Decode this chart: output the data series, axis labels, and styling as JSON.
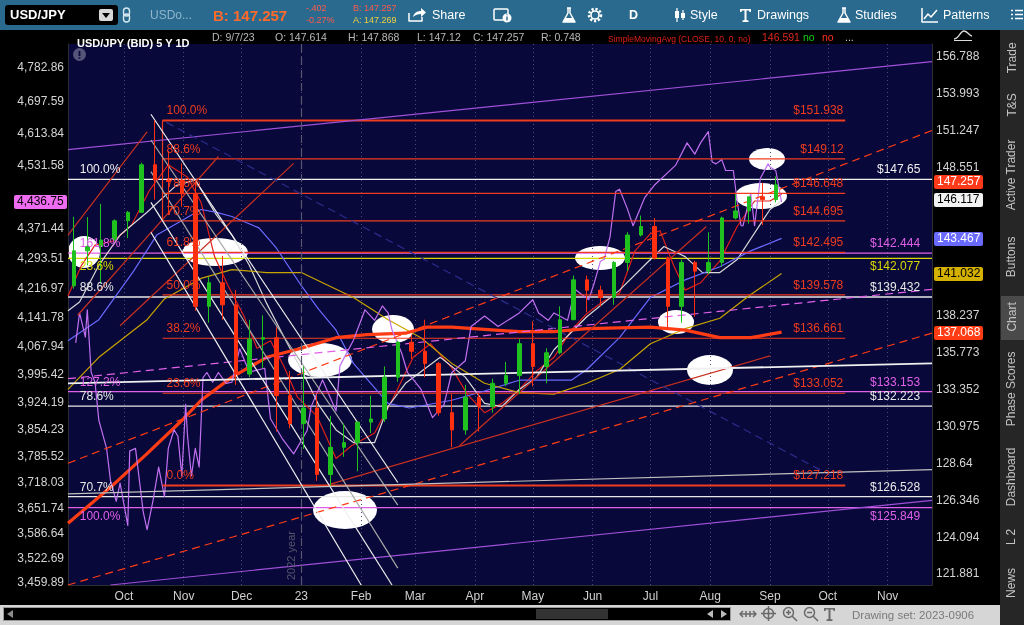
{
  "chart_data": {
    "type": "candlestick",
    "title": "USD/JPY (BID) 5 Y 1D",
    "legend": "top",
    "grid": "x",
    "marker": "none",
    "log": "y",
    "xlim": [
      "2022-09-02",
      "2023-11-24"
    ],
    "xticks": [
      {
        "value": "2022-10-01",
        "label": "Oct"
      },
      {
        "value": "2022-11-01",
        "label": "Nov"
      },
      {
        "value": "2022-12-01",
        "label": "Dec"
      },
      {
        "value": "2023-01-01",
        "label": "23"
      },
      {
        "value": "2023-02-01",
        "label": "Feb"
      },
      {
        "value": "2023-03-01",
        "label": "Mar"
      },
      {
        "value": "2023-04-01",
        "label": "Apr"
      },
      {
        "value": "2023-05-01",
        "label": "May"
      },
      {
        "value": "2023-06-01",
        "label": "Jun"
      },
      {
        "value": "2023-07-01",
        "label": "Jul"
      },
      {
        "value": "2023-08-01",
        "label": "Aug"
      },
      {
        "value": "2023-09-01",
        "label": "Sep"
      },
      {
        "value": "2023-10-01",
        "label": "Oct"
      },
      {
        "value": "2023-11-01",
        "label": "Nov"
      }
    ],
    "ylim": [
      121.2,
      157.7
    ],
    "yticks": [
      121.881,
      124.094,
      126.346,
      128.64,
      130.975,
      133.352,
      135.773,
      138.237,
      148.551,
      151.247,
      153.993,
      156.788
    ],
    "y2lim": [
      3453,
      4843
    ],
    "y2ticks": [
      {
        "value": 3459.89,
        "label": "3,459.89"
      },
      {
        "value": 3522.69,
        "label": "3,522.69"
      },
      {
        "value": 3586.64,
        "label": "3,586.64"
      },
      {
        "value": 3651.74,
        "label": "3,651.74"
      },
      {
        "value": 3718.03,
        "label": "3,718.03"
      },
      {
        "value": 3785.52,
        "label": "3,785.52"
      },
      {
        "value": 3854.23,
        "label": "3,854.23"
      },
      {
        "value": 3924.19,
        "label": "3,924.19"
      },
      {
        "value": 3995.42,
        "label": "3,995.42"
      },
      {
        "value": 4067.94,
        "label": "4,067.94"
      },
      {
        "value": 4141.78,
        "label": "4,141.78"
      },
      {
        "value": 4216.97,
        "label": "4,216.97"
      },
      {
        "value": 4293.51,
        "label": "4,293.51"
      },
      {
        "value": 4371.44,
        "label": "4,371.44"
      },
      {
        "value": 4531.58,
        "label": "4,531.58"
      },
      {
        "value": 4613.84,
        "label": "4,613.84"
      },
      {
        "value": 4697.59,
        "label": "4,697.59"
      },
      {
        "value": 4782.86,
        "label": "4,782.86"
      }
    ],
    "x": [
      "2022-09-05",
      "2022-09-12",
      "2022-09-19",
      "2022-09-26",
      "2022-10-03",
      "2022-10-10",
      "2022-10-17",
      "2022-10-24",
      "2022-10-31",
      "2022-11-07",
      "2022-11-14",
      "2022-11-21",
      "2022-11-28",
      "2022-12-05",
      "2022-12-12",
      "2022-12-19",
      "2022-12-26",
      "2023-01-02",
      "2023-01-09",
      "2023-01-16",
      "2023-01-23",
      "2023-01-30",
      "2023-02-06",
      "2023-02-13",
      "2023-02-20",
      "2023-02-27",
      "2023-03-06",
      "2023-03-13",
      "2023-03-20",
      "2023-03-27",
      "2023-04-03",
      "2023-04-10",
      "2023-04-17",
      "2023-04-24",
      "2023-05-01",
      "2023-05-08",
      "2023-05-15",
      "2023-05-22",
      "2023-05-29",
      "2023-06-05",
      "2023-06-12",
      "2023-06-19",
      "2023-06-26",
      "2023-07-03",
      "2023-07-10",
      "2023-07-17",
      "2023-07-24",
      "2023-07-31",
      "2023-08-07",
      "2023-08-14",
      "2023-08-21",
      "2023-08-28",
      "2023-09-04"
    ],
    "ohlc": [
      [
        140.2,
        144.99,
        140.0,
        142.6
      ],
      [
        142.6,
        144.96,
        141.6,
        142.9
      ],
      [
        142.9,
        145.9,
        140.35,
        143.35
      ],
      [
        143.4,
        144.8,
        143.3,
        144.7
      ],
      [
        144.7,
        145.4,
        143.5,
        145.3
      ],
      [
        145.3,
        148.85,
        145.3,
        148.7
      ],
      [
        148.7,
        151.938,
        146.2,
        147.6
      ],
      [
        147.6,
        149.7,
        145.1,
        147.5
      ],
      [
        147.6,
        148.8,
        145.7,
        146.6
      ],
      [
        146.6,
        147.6,
        138.5,
        138.8
      ],
      [
        138.8,
        140.8,
        137.7,
        140.4
      ],
      [
        140.4,
        142.25,
        137.9,
        138.9
      ],
      [
        138.9,
        139.9,
        133.6,
        134.3
      ],
      [
        134.3,
        137.9,
        134.1,
        136.6
      ],
      [
        136.6,
        138.2,
        134.7,
        136.7
      ],
      [
        136.7,
        137.4,
        130.6,
        132.9
      ],
      [
        132.9,
        134.5,
        130.8,
        131.1
      ],
      [
        131.1,
        134.8,
        129.5,
        132.1
      ],
      [
        132.1,
        132.9,
        127.5,
        127.9
      ],
      [
        127.9,
        131.6,
        127.218,
        129.6
      ],
      [
        129.6,
        131.1,
        129.0,
        129.9
      ],
      [
        129.9,
        131.2,
        128.1,
        131.2
      ],
      [
        131.2,
        132.9,
        130.5,
        131.4
      ],
      [
        131.4,
        134.8,
        131.2,
        134.1
      ],
      [
        134.1,
        136.5,
        133.8,
        136.4
      ],
      [
        136.4,
        136.9,
        135.3,
        135.8
      ],
      [
        135.8,
        137.9,
        134.1,
        135.0
      ],
      [
        135.0,
        135.1,
        131.6,
        131.8
      ],
      [
        131.8,
        133.0,
        129.6,
        130.7
      ],
      [
        130.7,
        133.6,
        130.4,
        132.8
      ],
      [
        132.8,
        133.1,
        130.6,
        132.2
      ],
      [
        132.2,
        134.0,
        131.8,
        133.7
      ],
      [
        133.7,
        135.1,
        133.5,
        134.2
      ],
      [
        134.2,
        136.6,
        133.0,
        136.3
      ],
      [
        136.3,
        137.8,
        133.5,
        134.8
      ],
      [
        134.8,
        136.0,
        133.7,
        135.7
      ],
      [
        135.7,
        138.8,
        135.6,
        137.9
      ],
      [
        137.9,
        140.9,
        137.9,
        140.6
      ],
      [
        140.6,
        140.9,
        138.4,
        139.9
      ],
      [
        139.9,
        140.2,
        138.8,
        139.4
      ],
      [
        139.4,
        141.9,
        138.9,
        141.8
      ],
      [
        141.8,
        143.9,
        141.2,
        143.7
      ],
      [
        143.7,
        145.07,
        143.6,
        144.3
      ],
      [
        144.3,
        144.9,
        142.0,
        142.1
      ],
      [
        142.1,
        142.2,
        137.25,
        138.8
      ],
      [
        138.8,
        142.0,
        137.7,
        141.8
      ],
      [
        141.8,
        141.9,
        138.1,
        141.2
      ],
      [
        141.2,
        143.9,
        141.0,
        141.8
      ],
      [
        141.8,
        145.0,
        141.5,
        144.9
      ],
      [
        144.9,
        146.6,
        144.8,
        145.4
      ],
      [
        145.4,
        146.4,
        144.5,
        146.4
      ],
      [
        146.4,
        147.4,
        144.4,
        146.2
      ],
      [
        146.2,
        147.868,
        146.0,
        147.257
      ]
    ],
    "colors": [
      "#1fc11f",
      "#1fc11f",
      "#1fc11f",
      "#1fc11f",
      "#1fc11f",
      "#1fc11f",
      "#ff3010",
      "#ff3010",
      "#ff3010",
      "#ff3010",
      "#1fc11f",
      "#ff3010",
      "#ff3010",
      "#1fc11f",
      "#1fc11f",
      "#ff3010",
      "#ff3010",
      "#1fc11f",
      "#ff3010",
      "#1fc11f",
      "#1fc11f",
      "#1fc11f",
      "#1fc11f",
      "#1fc11f",
      "#1fc11f",
      "#ff3010",
      "#ff3010",
      "#ff3010",
      "#ff3010",
      "#1fc11f",
      "#ff3010",
      "#1fc11f",
      "#1fc11f",
      "#1fc11f",
      "#ff3010",
      "#1fc11f",
      "#1fc11f",
      "#1fc11f",
      "#ff3010",
      "#ff3010",
      "#1fc11f",
      "#1fc11f",
      "#1fc11f",
      "#ff3010",
      "#ff3010",
      "#1fc11f",
      "#ff3010",
      "#1fc11f",
      "#1fc11f",
      "#1fc11f",
      "#1fc11f",
      "#ff3010",
      "#1fc11f"
    ],
    "series": [
      {
        "type": "line",
        "name": "SimpleMovingAvg (CLOSE, 10, 0, no)",
        "color": "#e0201a",
        "x": [
          "2022-09-02",
          "2022-09-09",
          "2022-09-16",
          "2022-09-26",
          "2022-10-05",
          "2022-10-14",
          "2022-10-24",
          "2022-11-03",
          "2022-11-10",
          "2022-11-17",
          "2022-11-24",
          "2022-12-02",
          "2022-12-09",
          "2022-12-16",
          "2022-12-23",
          "2022-12-30",
          "2023-01-09",
          "2023-01-19",
          "2023-01-27",
          "2023-02-08",
          "2023-02-17",
          "2023-02-28",
          "2023-03-09",
          "2023-03-20",
          "2023-03-28",
          "2023-04-06",
          "2023-04-15",
          "2023-04-24",
          "2023-05-03",
          "2023-05-12",
          "2023-05-21",
          "2023-05-29",
          "2023-06-06",
          "2023-06-15",
          "2023-06-23",
          "2023-07-01",
          "2023-07-06",
          "2023-07-13",
          "2023-07-19",
          "2023-07-27",
          "2023-08-06",
          "2023-08-15",
          "2023-08-24",
          "2023-09-01",
          "2023-09-07"
        ],
        "values": [
          139.5,
          141.6,
          143.0,
          143.3,
          144.4,
          146.8,
          148.7,
          147.8,
          146.0,
          142.2,
          140.2,
          138.2,
          136.0,
          136.5,
          134.8,
          132.8,
          131.6,
          128.9,
          129.7,
          130.5,
          132.6,
          135.4,
          136.3,
          134.7,
          133.0,
          131.8,
          132.4,
          133.3,
          134.5,
          135.4,
          137.2,
          138.3,
          139.1,
          139.7,
          142.6,
          143.8,
          144.0,
          141.6,
          139.9,
          140.4,
          141.9,
          144.3,
          146.1,
          146.1,
          146.591
        ]
      },
      {
        "type": "line",
        "color": "#d8d8d8",
        "x": [
          "2022-09-02",
          "2022-09-08",
          "2022-09-18",
          "2022-09-29",
          "2022-10-13",
          "2022-10-28",
          "2022-11-07",
          "2022-11-18",
          "2022-11-26",
          "2022-12-05",
          "2022-12-14",
          "2022-12-24",
          "2023-01-01",
          "2023-01-10",
          "2023-01-19",
          "2023-01-28",
          "2023-02-08",
          "2023-02-15",
          "2023-02-24",
          "2023-03-14",
          "2023-03-27",
          "2023-04-06",
          "2023-04-15",
          "2023-04-24",
          "2023-05-03",
          "2023-05-12",
          "2023-05-29",
          "2023-06-15",
          "2023-07-01",
          "2023-07-08",
          "2023-07-19",
          "2023-07-28",
          "2023-08-06",
          "2023-08-15",
          "2023-09-01",
          "2023-09-07"
        ],
        "values": [
          138.5,
          139.1,
          141.6,
          143.7,
          145.3,
          147.2,
          147.6,
          145.1,
          143.7,
          141.6,
          139.0,
          136.5,
          134.6,
          132.3,
          130.7,
          129.9,
          129.9,
          132.2,
          133.7,
          135.4,
          134.1,
          132.4,
          132.2,
          133.3,
          134.1,
          135.9,
          138.1,
          139.9,
          142.0,
          142.9,
          142.2,
          141.1,
          141.1,
          142.0,
          145.5,
          146.117
        ]
      },
      {
        "type": "line",
        "color": "#6a6aff",
        "x": [
          "2022-09-02",
          "2022-09-18",
          "2022-10-06",
          "2022-10-18",
          "2022-11-10",
          "2022-11-18",
          "2022-11-26",
          "2022-12-10",
          "2022-12-19",
          "2023-01-01",
          "2023-01-10",
          "2023-01-19",
          "2023-01-28",
          "2023-02-15",
          "2023-02-26",
          "2023-03-20",
          "2023-04-06",
          "2023-04-24",
          "2023-05-21",
          "2023-05-29",
          "2023-06-15",
          "2023-07-01",
          "2023-07-19",
          "2023-08-06",
          "2023-08-22",
          "2023-09-07"
        ],
        "values": [
          136.5,
          137.9,
          141.2,
          143.7,
          145.5,
          145.3,
          145.0,
          144.2,
          142.8,
          140.2,
          138.6,
          137.2,
          135.0,
          132.4,
          132.1,
          132.6,
          133.2,
          133.9,
          133.9,
          134.6,
          136.7,
          139.4,
          140.6,
          141.5,
          142.6,
          143.467
        ]
      },
      {
        "type": "line",
        "color": "#c8a400",
        "x": [
          "2022-09-02",
          "2022-09-18",
          "2022-10-13",
          "2022-10-22",
          "2022-11-10",
          "2022-11-26",
          "2022-12-14",
          "2023-01-01",
          "2023-01-12",
          "2023-01-28",
          "2023-02-15",
          "2023-03-04",
          "2023-03-20",
          "2023-04-06",
          "2023-04-24",
          "2023-05-12",
          "2023-05-29",
          "2023-06-15",
          "2023-07-01",
          "2023-07-19",
          "2023-08-06",
          "2023-08-22",
          "2023-09-07"
        ],
        "values": [
          133.3,
          135.4,
          137.9,
          139.3,
          140.7,
          141.3,
          141.1,
          141.1,
          140.4,
          139.4,
          137.9,
          136.7,
          135.0,
          133.7,
          133.1,
          133.0,
          133.7,
          134.6,
          136.3,
          137.3,
          138.0,
          139.6,
          141.032
        ]
      },
      {
        "type": "line",
        "color": "#ff3c14",
        "x": [
          "2022-09-02",
          "2022-09-24",
          "2022-10-13",
          "2022-10-31",
          "2022-11-10",
          "2022-11-26",
          "2022-12-14",
          "2023-01-01",
          "2023-01-19",
          "2023-02-04",
          "2023-02-24",
          "2023-03-07",
          "2023-03-20",
          "2023-04-24",
          "2023-05-12",
          "2023-05-29",
          "2023-07-01",
          "2023-07-19",
          "2023-08-06",
          "2023-08-22",
          "2023-09-07"
        ],
        "values": [
          124.9,
          127.1,
          129.2,
          131.3,
          132.6,
          134.1,
          135.4,
          136.0,
          136.7,
          136.9,
          137.0,
          137.4,
          137.4,
          137.1,
          137.1,
          137.3,
          137.4,
          137.2,
          136.7,
          136.7,
          137.068
        ]
      },
      {
        "type": "line",
        "color": "#c070f0",
        "axis": "y2",
        "x": [
          "2022-09-06",
          "2022-09-08",
          "2022-09-11",
          "2022-09-12",
          "2022-09-14",
          "2022-09-16",
          "2022-09-18",
          "2022-09-22",
          "2022-09-24",
          "2022-09-27",
          "2022-09-29",
          "2022-10-03",
          "2022-10-04",
          "2022-10-07",
          "2022-10-11",
          "2022-10-13",
          "2022-10-16",
          "2022-10-19",
          "2022-10-22",
          "2022-10-24",
          "2022-10-27",
          "2022-10-29",
          "2022-10-31",
          "2022-11-02",
          "2022-11-03",
          "2022-11-05",
          "2022-11-07",
          "2022-11-09",
          "2022-11-11",
          "2022-11-13",
          "2022-11-16",
          "2022-11-19",
          "2022-11-23",
          "2022-11-26",
          "2022-11-30",
          "2022-12-05",
          "2022-12-13",
          "2022-12-16",
          "2022-12-22",
          "2022-12-28",
          "2023-01-04",
          "2023-01-06",
          "2023-01-12",
          "2023-01-19",
          "2023-01-21",
          "2023-01-28",
          "2023-02-03",
          "2023-02-08",
          "2023-02-12",
          "2023-02-15",
          "2023-02-17",
          "2023-02-22",
          "2023-02-25",
          "2023-03-04",
          "2023-03-10",
          "2023-03-16",
          "2023-03-20",
          "2023-03-27",
          "2023-03-30",
          "2023-04-06",
          "2023-04-13",
          "2023-04-24",
          "2023-05-01",
          "2023-05-04",
          "2023-05-09",
          "2023-05-12",
          "2023-05-19",
          "2023-05-23",
          "2023-05-30",
          "2023-06-02",
          "2023-06-05",
          "2023-06-07",
          "2023-06-10",
          "2023-06-13",
          "2023-06-15",
          "2023-06-19",
          "2023-06-22",
          "2023-06-28",
          "2023-07-03",
          "2023-07-14",
          "2023-07-20",
          "2023-07-24",
          "2023-07-27",
          "2023-07-31",
          "2023-08-02",
          "2023-08-04",
          "2023-08-07",
          "2023-08-09",
          "2023-08-13",
          "2023-08-15",
          "2023-08-17",
          "2023-08-18",
          "2023-08-22",
          "2023-08-24",
          "2023-08-27",
          "2023-08-31",
          "2023-09-01",
          "2023-09-04",
          "2023-09-07"
        ],
        "values": [
          4075,
          4152,
          4090,
          4160,
          4000,
          3974,
          3876,
          3804,
          3722,
          3668,
          3715,
          3606,
          3797,
          3804,
          3641,
          3595,
          3668,
          3756,
          3680,
          3804,
          3852,
          3835,
          3733,
          3917,
          3835,
          3733,
          3804,
          3756,
          3986,
          3999,
          3974,
          3999,
          3971,
          3974,
          4060,
          4000,
          4010,
          3880,
          3830,
          3790,
          3850,
          3910,
          3980,
          3900,
          4016,
          4082,
          4160,
          4133,
          4170,
          4152,
          4108,
          4049,
          3999,
          3956,
          3883,
          3917,
          3999,
          4029,
          4117,
          4144,
          4117,
          4152,
          4186,
          4152,
          4133,
          4152,
          4133,
          4212,
          4186,
          4231,
          4284,
          4290,
          4346,
          4464,
          4470,
          4420,
          4376,
          4448,
          4480,
          4531,
          4589,
          4560,
          4589,
          4618,
          4540,
          4535,
          4546,
          4518,
          4518,
          4437,
          4376,
          4376,
          4459,
          4376,
          4498,
          4535,
          4527,
          4518,
          4436.75
        ]
      },
      {
        "type": "line",
        "color": "#f03c1e",
        "x": [
          "2022-10-21",
          "2023-10-10"
        ],
        "values": [
          151.938,
          151.938
        ]
      },
      {
        "type": "line",
        "color": "#f03c1e",
        "x": [
          "2022-10-21",
          "2023-10-10"
        ],
        "values": [
          149.12,
          149.12
        ]
      },
      {
        "type": "line",
        "color": "#f03c1e",
        "x": [
          "2022-10-21",
          "2023-10-10"
        ],
        "values": [
          146.648,
          146.648
        ]
      },
      {
        "type": "line",
        "color": "#f03c1e",
        "x": [
          "2022-10-21",
          "2023-10-10"
        ],
        "values": [
          144.695,
          144.695
        ]
      },
      {
        "type": "line",
        "color": "#f03c1e",
        "x": [
          "2022-10-21",
          "2023-10-10"
        ],
        "values": [
          142.495,
          142.495
        ]
      },
      {
        "type": "line",
        "color": "#f03c1e",
        "x": [
          "2022-10-21",
          "2023-10-10"
        ],
        "values": [
          139.578,
          139.578
        ]
      },
      {
        "type": "line",
        "color": "#f03c1e",
        "x": [
          "2022-10-21",
          "2023-10-10"
        ],
        "values": [
          136.661,
          136.661
        ]
      },
      {
        "type": "line",
        "color": "#f03c1e",
        "x": [
          "2022-10-21",
          "2023-10-10"
        ],
        "values": [
          133.052,
          133.052
        ]
      },
      {
        "type": "line",
        "color": "#f03c1e",
        "x": [
          "2022-10-21",
          "2023-10-10"
        ],
        "values": [
          127.218,
          127.218
        ]
      },
      {
        "type": "line",
        "color": "#f03c1e",
        "x": [
          "2022-10-21",
          "2022-10-21"
        ],
        "values": [
          151.938,
          144.695
        ]
      },
      {
        "type": "line",
        "color": "#a050d8",
        "x": [
          "2022-09-02",
          "2023-11-24"
        ],
        "values": [
          149.8,
          156.35
        ]
      },
      {
        "type": "line",
        "color": "#a050d8",
        "x": [
          "2022-09-24",
          "2023-11-24"
        ],
        "values": [
          121.2,
          126.3
        ]
      },
      {
        "type": "line",
        "color": "#ff3c14",
        "line_style": "dashed",
        "x": [
          "2022-09-02",
          "2023-11-24"
        ],
        "values": [
          128.6,
          151.2
        ]
      },
      {
        "type": "line",
        "color": "#ff3c14",
        "line_style": "dashed",
        "x": [
          "2022-09-02",
          "2023-11-24"
        ],
        "values": [
          121.2,
          137.0
        ]
      },
      {
        "type": "line",
        "color": "#e060e8",
        "line_style": "dashed",
        "x": [
          "2022-09-02",
          "2023-11-24"
        ],
        "values": [
          134.0,
          139.95
        ]
      },
      {
        "type": "line",
        "color": "#c83020",
        "x": [
          "2022-09-02",
          "2022-10-13"
        ],
        "values": [
          143.7,
          151.1
        ]
      },
      {
        "type": "line",
        "color": "#c83020",
        "x": [
          "2022-09-07",
          "2022-11-19"
        ],
        "values": [
          138.2,
          149.3
        ]
      },
      {
        "type": "line",
        "color": "#c83020",
        "x": [
          "2022-09-29",
          "2022-12-28"
        ],
        "values": [
          137.5,
          148.8
        ]
      },
      {
        "type": "line",
        "color": "#c83020",
        "x": [
          "2023-01-16",
          "2023-09-01"
        ],
        "values": [
          127.3,
          135.5
        ]
      },
      {
        "type": "line",
        "color": "#c83020",
        "x": [
          "2023-03-24",
          "2023-07-30"
        ],
        "values": [
          129.7,
          144.3
        ]
      },
      {
        "type": "line",
        "color": "#f0f0f0",
        "x": [
          "2022-10-15",
          "2023-02-20"
        ],
        "values": [
          152.4,
          127.4
        ]
      },
      {
        "type": "line",
        "color": "#a8a8a8",
        "x": [
          "2022-10-15",
          "2023-02-20"
        ],
        "values": [
          150.5,
          126.0
        ]
      },
      {
        "type": "line",
        "color": "#a8a8a8",
        "x": [
          "2022-10-15",
          "2023-02-20"
        ],
        "values": [
          148.2,
          122.2
        ]
      },
      {
        "type": "line",
        "color": "#f0f0f0",
        "x": [
          "2022-10-15",
          "2023-02-17"
        ],
        "values": [
          146.0,
          121.2
        ]
      },
      {
        "type": "line",
        "color": "#f0f0f0",
        "x": [
          "2022-10-15",
          "2023-02-01"
        ],
        "values": [
          143.9,
          121.2
        ]
      },
      {
        "type": "line",
        "color": "#2c2c8c",
        "line_style": "dashed",
        "x": [
          "2022-10-23",
          "2023-10-03"
        ],
        "values": [
          151.8,
          127.8
        ]
      },
      {
        "type": "line",
        "color": "#f0f0f0",
        "x": [
          "2022-09-02",
          "2023-11-24"
        ],
        "values": [
          133.7,
          135.0
        ]
      },
      {
        "type": "line",
        "color": "#c0c0c0",
        "x": [
          "2022-09-02",
          "2023-11-24"
        ],
        "values": [
          126.7,
          128.2
        ]
      }
    ],
    "ref_lines": [
      {
        "axis": "x",
        "value": "2023-01-01",
        "label": "2022 year",
        "color": "#56566e",
        "line_style": "dashed"
      },
      {
        "axis": "y",
        "value": 147.65,
        "label": "$147.65",
        "color": "#f0f0f0"
      },
      {
        "axis": "y",
        "value": 142.444,
        "label": "$142.444",
        "color": "#e060e8"
      },
      {
        "axis": "y",
        "value": 142.077,
        "label": "$142.077",
        "color": "#d8d800"
      },
      {
        "axis": "y",
        "value": 139.432,
        "label": "$139.432",
        "color": "#e8e8e8"
      },
      {
        "axis": "y",
        "value": 133.153,
        "label": "$133.153",
        "color": "#e060e8"
      },
      {
        "axis": "y",
        "value": 132.223,
        "label": "$132.223",
        "color": "#e8e8e8"
      },
      {
        "axis": "y",
        "value": 126.528,
        "label": "$126.528",
        "color": "#e8e8e8"
      },
      {
        "axis": "y",
        "value": 125.849,
        "label": "$125.849",
        "color": "#e060e8"
      }
    ],
    "annotations": [
      "USD/JPY",
      "USDo...",
      "B: 147.257",
      "-.402",
      "-0.27%",
      "B: 147.257",
      "A: 147.269",
      "Share",
      "D",
      "Style",
      "Drawings",
      "Studies",
      "Patterns",
      "D: 9/7/23",
      "O: 147.614",
      "H: 147.868",
      "L: 147.12",
      "C: 147.257",
      "R: 0.748",
      "146.591",
      "no",
      "no",
      "...",
      "Trade",
      "T&S",
      "Active Trader",
      "Buttons",
      "Chart",
      "Phase Scores",
      "Dashboard",
      "L 2",
      "News",
      "Drawing set: 2023-0906",
      "147.257",
      "146.117",
      "143.467",
      "141.032",
      "137.068",
      "4,436.75",
      {
        "text": "100.0%",
        "x": "2022-10-21",
        "y": 151.938
      },
      {
        "text": "88.6%",
        "x": "2022-10-21",
        "y": 149.12
      },
      {
        "text": "78.6%",
        "x": "2022-10-21",
        "y": 146.648
      },
      {
        "text": "70.7%",
        "x": "2022-10-21",
        "y": 144.695
      },
      {
        "text": "61.8%",
        "x": "2022-10-21",
        "y": 142.495
      },
      {
        "text": "50.0%",
        "x": "2022-10-21",
        "y": 139.578
      },
      {
        "text": "38.2%",
        "x": "2022-10-21",
        "y": 136.661
      },
      {
        "text": "23.6%",
        "x": "2022-10-21",
        "y": 133.052
      },
      {
        "text": "0.0%",
        "x": "2022-10-21",
        "y": 127.218
      },
      {
        "text": "$151.938",
        "x": "2023-10-10",
        "y": 151.938
      },
      {
        "text": "$149.12",
        "x": "2023-10-10",
        "y": 149.12
      },
      {
        "text": "$146.648",
        "x": "2023-10-10",
        "y": 146.648
      },
      {
        "text": "$144.695",
        "x": "2023-10-10",
        "y": 144.695
      },
      {
        "text": "$142.495",
        "x": "2023-10-10",
        "y": 142.495
      },
      {
        "text": "$139.578",
        "x": "2023-10-10",
        "y": 139.578
      },
      {
        "text": "$136.661",
        "x": "2023-10-10",
        "y": 136.661
      },
      {
        "text": "$133.052",
        "x": "2023-10-10",
        "y": 133.052
      },
      {
        "text": "$127.218",
        "x": "2023-10-10",
        "y": 127.218
      },
      {
        "text": "100.0%",
        "x": "2022-09-06",
        "y": 147.65
      },
      {
        "text": "88.6%",
        "x": "2022-09-06",
        "y": 139.432
      },
      {
        "text": "78.6%",
        "x": "2022-09-06",
        "y": 132.223
      },
      {
        "text": "70.7%",
        "x": "2022-09-06",
        "y": 126.528
      },
      {
        "text": "161.8%",
        "x": "2022-09-06",
        "y": 142.444
      },
      {
        "text": "127.2%",
        "x": "2022-09-06",
        "y": 133.153
      },
      {
        "text": "100.0%",
        "x": "2022-09-06",
        "y": 125.849
      },
      {
        "text": "23.6%",
        "x": "2022-09-06",
        "y": 142.077
      }
    ]
  }
}
